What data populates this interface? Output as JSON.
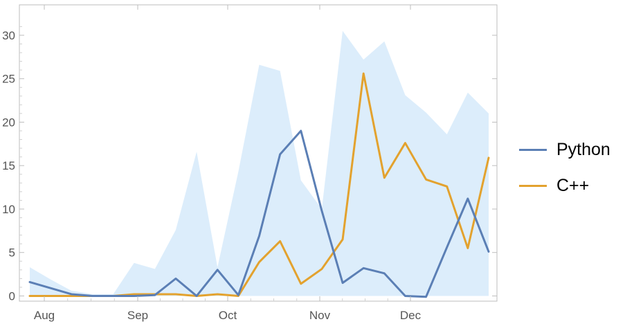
{
  "chart_data": {
    "type": "line",
    "x_tick_labels": [
      "Aug",
      "Sep",
      "Oct",
      "Nov",
      "Dec"
    ],
    "y_ticks": [
      0,
      5,
      10,
      15,
      20,
      25,
      30
    ],
    "ylim": [
      -0.6,
      33.5
    ],
    "grid": false,
    "legend_position": "right",
    "series": [
      {
        "name": "Python",
        "color": "#5b7fb5",
        "values": [
          1.6,
          0.9,
          0.2,
          0.0,
          0.0,
          0.0,
          0.1,
          2.0,
          0.0,
          3.0,
          0.1,
          6.9,
          16.3,
          19.0,
          9.8,
          1.5,
          3.2,
          2.6,
          0.0,
          -0.1,
          5.6,
          11.2,
          5.1
        ]
      },
      {
        "name": "C++",
        "color": "#e3a22e",
        "values": [
          0.0,
          0.0,
          0.0,
          0.0,
          0.0,
          0.2,
          0.2,
          0.2,
          0.0,
          0.2,
          0.0,
          3.9,
          6.3,
          1.4,
          3.1,
          6.5,
          25.6,
          13.6,
          17.6,
          13.4,
          12.6,
          5.5,
          15.9
        ]
      }
    ],
    "band": {
      "color": "#dcedfb",
      "upper": [
        3.3,
        1.9,
        0.6,
        0.2,
        0.2,
        3.8,
        3.1,
        7.6,
        16.6,
        3.3,
        14.3,
        26.6,
        25.9,
        13.3,
        10.0,
        30.5,
        27.2,
        29.3,
        23.1,
        21.1,
        18.6,
        23.4,
        21.0
      ],
      "lower": [
        0,
        0,
        0,
        0,
        0,
        0,
        0,
        0,
        0,
        0,
        0,
        0,
        0,
        0,
        0,
        0,
        0,
        0,
        0,
        0,
        0,
        0,
        0
      ]
    }
  }
}
